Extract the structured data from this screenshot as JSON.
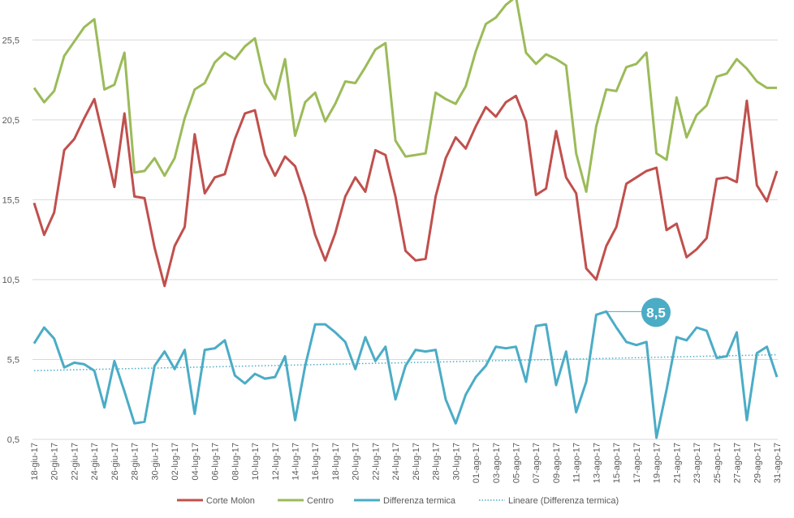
{
  "chart_data": {
    "type": "line",
    "title": "",
    "xlabel": "",
    "ylabel": "",
    "ylim": [
      0.5,
      28
    ],
    "yticks": [
      "0,5",
      "5,5",
      "10,5",
      "15,5",
      "20,5",
      "25,5"
    ],
    "ytick_values": [
      0.5,
      5.5,
      10.5,
      15.5,
      20.5,
      25.5
    ],
    "categories": [
      "18-giu-17",
      "19-giu-17",
      "20-giu-17",
      "21-giu-17",
      "22-giu-17",
      "23-giu-17",
      "24-giu-17",
      "25-giu-17",
      "26-giu-17",
      "27-giu-17",
      "28-giu-17",
      "29-giu-17",
      "30-giu-17",
      "01-lug-17",
      "02-lug-17",
      "03-lug-17",
      "04-lug-17",
      "05-lug-17",
      "06-lug-17",
      "07-lug-17",
      "08-lug-17",
      "09-lug-17",
      "10-lug-17",
      "11-lug-17",
      "12-lug-17",
      "13-lug-17",
      "14-lug-17",
      "15-lug-17",
      "16-lug-17",
      "17-lug-17",
      "18-lug-17",
      "19-lug-17",
      "20-lug-17",
      "21-lug-17",
      "22-lug-17",
      "23-lug-17",
      "24-lug-17",
      "25-lug-17",
      "26-lug-17",
      "27-lug-17",
      "28-lug-17",
      "29-lug-17",
      "30-lug-17",
      "31-lug-17",
      "01-ago-17",
      "02-ago-17",
      "03-ago-17",
      "04-ago-17",
      "05-ago-17",
      "06-ago-17",
      "07-ago-17",
      "08-ago-17",
      "09-ago-17",
      "10-ago-17",
      "11-ago-17",
      "12-ago-17",
      "13-ago-17",
      "14-ago-17",
      "15-ago-17",
      "16-ago-17",
      "17-ago-17",
      "18-ago-17",
      "19-ago-17",
      "20-ago-17",
      "21-ago-17",
      "22-ago-17",
      "23-ago-17",
      "24-ago-17",
      "25-ago-17",
      "26-ago-17",
      "27-ago-17",
      "28-ago-17",
      "29-ago-17",
      "30-ago-17",
      "31-ago-17"
    ],
    "xticks_shown": [
      "18-giu-17",
      "20-giu-17",
      "22-giu-17",
      "24-giu-17",
      "26-giu-17",
      "28-giu-17",
      "30-giu-17",
      "02-lug-17",
      "04-lug-17",
      "06-lug-17",
      "08-lug-17",
      "10-lug-17",
      "12-lug-17",
      "14-lug-17",
      "16-lug-17",
      "18-lug-17",
      "20-lug-17",
      "22-lug-17",
      "24-lug-17",
      "26-lug-17",
      "28-lug-17",
      "30-lug-17",
      "01-ago-17",
      "03-ago-17",
      "05-ago-17",
      "07-ago-17",
      "09-ago-17",
      "11-ago-17",
      "13-ago-17",
      "15-ago-17",
      "17-ago-17",
      "19-ago-17",
      "21-ago-17",
      "23-ago-17",
      "25-ago-17",
      "27-ago-17",
      "29-ago-17",
      "31-ago-17"
    ],
    "series": [
      {
        "name": "Corte Molon",
        "color": "#c0504d",
        "style": "solid",
        "values": [
          15.3,
          13.3,
          14.7,
          18.6,
          19.3,
          20.6,
          21.8,
          19.1,
          16.3,
          20.9,
          15.7,
          15.6,
          12.5,
          10.1,
          12.6,
          13.8,
          19.6,
          15.9,
          16.9,
          17.1,
          19.3,
          20.9,
          21.1,
          18.3,
          17.0,
          18.2,
          17.6,
          15.7,
          13.3,
          11.7,
          13.4,
          15.7,
          16.9,
          16.0,
          18.6,
          18.3,
          15.7,
          12.3,
          11.7,
          11.8,
          15.7,
          18.1,
          19.4,
          18.7,
          20.1,
          21.3,
          20.7,
          21.6,
          22.0,
          20.4,
          15.8,
          16.2,
          19.8,
          16.9,
          15.9,
          11.2,
          10.5,
          12.6,
          13.8,
          16.5,
          16.9,
          17.3,
          17.5,
          13.6,
          14.0,
          11.9,
          12.4,
          13.1,
          16.8,
          16.9,
          16.6,
          21.7,
          16.4,
          15.4,
          17.3
        ]
      },
      {
        "name": "Centro",
        "color": "#9bbb59",
        "style": "solid",
        "values": [
          22.5,
          21.6,
          22.3,
          24.5,
          25.4,
          26.3,
          26.8,
          22.4,
          22.7,
          24.7,
          17.2,
          17.3,
          18.1,
          17.0,
          18.1,
          20.6,
          22.4,
          22.8,
          24.1,
          24.7,
          24.3,
          25.1,
          25.6,
          22.8,
          21.8,
          24.3,
          19.5,
          21.6,
          22.2,
          20.4,
          21.5,
          22.9,
          22.8,
          23.8,
          24.9,
          25.3,
          19.2,
          18.2,
          18.3,
          18.4,
          22.2,
          21.8,
          21.5,
          22.6,
          24.8,
          26.5,
          26.9,
          27.7,
          28.2,
          24.7,
          24.0,
          24.6,
          24.3,
          23.9,
          18.4,
          16.0,
          20.1,
          22.4,
          22.3,
          23.8,
          24.0,
          24.7,
          18.4,
          18.0,
          21.9,
          19.4,
          20.8,
          21.4,
          23.2,
          23.4,
          24.3,
          23.7,
          22.9,
          22.5,
          22.5
        ]
      },
      {
        "name": "Differenza termica",
        "color": "#4bacc6",
        "style": "solid",
        "values": [
          6.5,
          7.5,
          6.8,
          5.0,
          5.3,
          5.2,
          4.8,
          2.5,
          5.4,
          3.5,
          1.5,
          1.6,
          5.1,
          6.0,
          4.9,
          6.1,
          2.1,
          6.1,
          6.2,
          6.7,
          4.5,
          4.0,
          4.6,
          4.3,
          4.4,
          5.7,
          1.7,
          5.1,
          7.7,
          7.7,
          7.2,
          6.6,
          4.9,
          6.9,
          5.4,
          6.3,
          3.0,
          5.1,
          6.1,
          6.0,
          6.1,
          3.0,
          1.5,
          3.3,
          4.4,
          5.1,
          6.3,
          6.2,
          6.3,
          4.1,
          7.6,
          7.7,
          3.9,
          6.0,
          2.2,
          4.1,
          8.3,
          8.5,
          7.5,
          6.6,
          6.4,
          6.6,
          0.6,
          3.6,
          6.9,
          6.7,
          7.5,
          7.3,
          5.6,
          5.7,
          7.2,
          1.7,
          5.9,
          6.3,
          4.4
        ]
      },
      {
        "name": "Lineare (Differenza termica)",
        "color": "#4bacc6",
        "style": "dotted",
        "trend_start": 4.8,
        "trend_end": 5.8
      }
    ],
    "legend": [
      "Corte Molon",
      "Centro",
      "Differenza termica",
      "Lineare (Differenza termica)"
    ],
    "legend_position": "bottom",
    "annotation": {
      "label": "8,5",
      "series": "Differenza termica",
      "category": "14-ago-17",
      "value": 8.5
    },
    "grid": true
  }
}
